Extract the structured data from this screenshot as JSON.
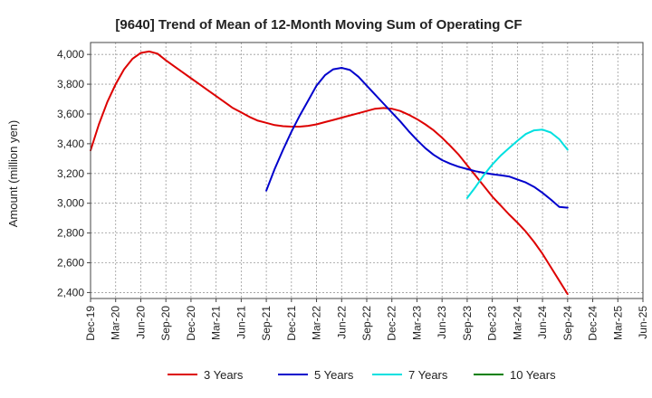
{
  "chart_data": {
    "type": "line",
    "title": "[9640]  Trend of Mean of 12-Month Moving Sum of Operating CF",
    "xlabel": "",
    "ylabel": "Amount (million yen)",
    "ylim": [
      2360,
      4080
    ],
    "yticks": [
      2400,
      2600,
      2800,
      3000,
      3200,
      3400,
      3600,
      3800,
      4000
    ],
    "ytick_labels": [
      "2,400",
      "2,600",
      "2,800",
      "3,000",
      "3,200",
      "3,400",
      "3,600",
      "3,800",
      "4,000"
    ],
    "x_range": [
      0,
      66
    ],
    "xticks": [
      0,
      3,
      6,
      9,
      12,
      15,
      18,
      21,
      24,
      27,
      30,
      33,
      36,
      39,
      42,
      45,
      48,
      51,
      54,
      57,
      60,
      63,
      66
    ],
    "xtick_labels": [
      "Dec-19",
      "Mar-20",
      "Jun-20",
      "Sep-20",
      "Dec-20",
      "Mar-21",
      "Jun-21",
      "Sep-21",
      "Dec-21",
      "Mar-22",
      "Jun-22",
      "Sep-22",
      "Dec-22",
      "Mar-23",
      "Jun-23",
      "Sep-23",
      "Dec-23",
      "Mar-24",
      "Jun-24",
      "Sep-24",
      "Dec-24",
      "Mar-25",
      "Jun-25"
    ],
    "grid": true,
    "legend_position": "bottom",
    "series": [
      {
        "name": "3 Years",
        "color": "#dd0000",
        "x": [
          0,
          1,
          2,
          3,
          4,
          5,
          6,
          7,
          8,
          9,
          10,
          11,
          12,
          13,
          14,
          15,
          16,
          17,
          18,
          19,
          20,
          21,
          22,
          23,
          24,
          25,
          26,
          27,
          28,
          29,
          30,
          31,
          32,
          33,
          34,
          35,
          36,
          37,
          38,
          39,
          40,
          41,
          42,
          43,
          44,
          45,
          46,
          47,
          48,
          49,
          50,
          51,
          52,
          53,
          54,
          55,
          56,
          57
        ],
        "values": [
          3355,
          3530,
          3680,
          3800,
          3900,
          3970,
          4010,
          4020,
          4005,
          3960,
          3920,
          3880,
          3840,
          3800,
          3760,
          3720,
          3680,
          3640,
          3610,
          3580,
          3555,
          3540,
          3525,
          3518,
          3515,
          3515,
          3520,
          3530,
          3545,
          3560,
          3575,
          3590,
          3605,
          3620,
          3635,
          3640,
          3635,
          3620,
          3595,
          3565,
          3530,
          3490,
          3440,
          3385,
          3325,
          3255,
          3185,
          3115,
          3045,
          2985,
          2925,
          2870,
          2810,
          2740,
          2660,
          2570,
          2480,
          2390
        ]
      },
      {
        "name": "5 Years",
        "color": "#0000cc",
        "x": [
          21,
          22,
          23,
          24,
          25,
          26,
          27,
          28,
          29,
          30,
          31,
          32,
          33,
          34,
          35,
          36,
          37,
          38,
          39,
          40,
          41,
          42,
          43,
          44,
          45,
          46,
          47,
          48,
          49,
          50,
          51,
          52,
          53,
          54,
          55,
          56,
          57
        ],
        "values": [
          3085,
          3230,
          3360,
          3480,
          3590,
          3690,
          3790,
          3860,
          3900,
          3910,
          3895,
          3850,
          3790,
          3730,
          3670,
          3610,
          3550,
          3485,
          3425,
          3370,
          3325,
          3290,
          3265,
          3245,
          3230,
          3215,
          3205,
          3195,
          3188,
          3180,
          3160,
          3140,
          3110,
          3070,
          3025,
          2975,
          2970
        ]
      },
      {
        "name": "7 Years",
        "color": "#00e0e0",
        "x": [
          45,
          46,
          47,
          48,
          49,
          50,
          51,
          52,
          53,
          54,
          55,
          56,
          57
        ],
        "values": [
          3035,
          3110,
          3190,
          3260,
          3320,
          3370,
          3420,
          3465,
          3490,
          3495,
          3475,
          3430,
          3360
        ]
      },
      {
        "name": "10 Years",
        "color": "#008000",
        "x": [],
        "values": []
      }
    ]
  }
}
